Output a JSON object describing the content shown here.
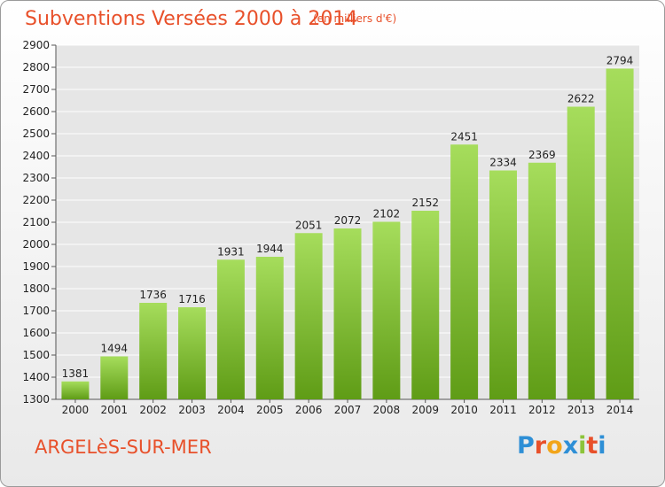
{
  "header": {
    "title": "Subventions Versées 2000 à 2014",
    "subtitle": "(en milliers d'€)"
  },
  "footer": {
    "place": "ARGELèS-SUR-MER",
    "logo_letters": [
      "P",
      "r",
      "o",
      "x",
      "i",
      "t",
      "i"
    ]
  },
  "colors": {
    "title": "#e8502a",
    "bar_top": "#a6dd5c",
    "bar_bottom": "#5f9c16",
    "grid": "#ffffff",
    "plot_bg": "#e6e6e6",
    "logo": [
      "#2e8fd6",
      "#e8502a",
      "#f2a51a",
      "#2e8fd6",
      "#8cc43a",
      "#e8502a",
      "#2e8fd6"
    ]
  },
  "chart_data": {
    "type": "bar",
    "title": "Subventions Versées 2000 à 2014",
    "subtitle": "(en milliers d'€)",
    "categories": [
      "2000",
      "2001",
      "2002",
      "2003",
      "2004",
      "2005",
      "2006",
      "2007",
      "2008",
      "2009",
      "2010",
      "2011",
      "2012",
      "2013",
      "2014"
    ],
    "values": [
      1381,
      1494,
      1736,
      1716,
      1931,
      1944,
      2051,
      2072,
      2102,
      2152,
      2451,
      2334,
      2369,
      2622,
      2794
    ],
    "ylim": [
      1300,
      2900
    ],
    "yticks": [
      1300,
      1400,
      1500,
      1600,
      1700,
      1800,
      1900,
      2000,
      2100,
      2200,
      2300,
      2400,
      2500,
      2600,
      2700,
      2800,
      2900
    ],
    "grid": true,
    "data_labels": true
  }
}
